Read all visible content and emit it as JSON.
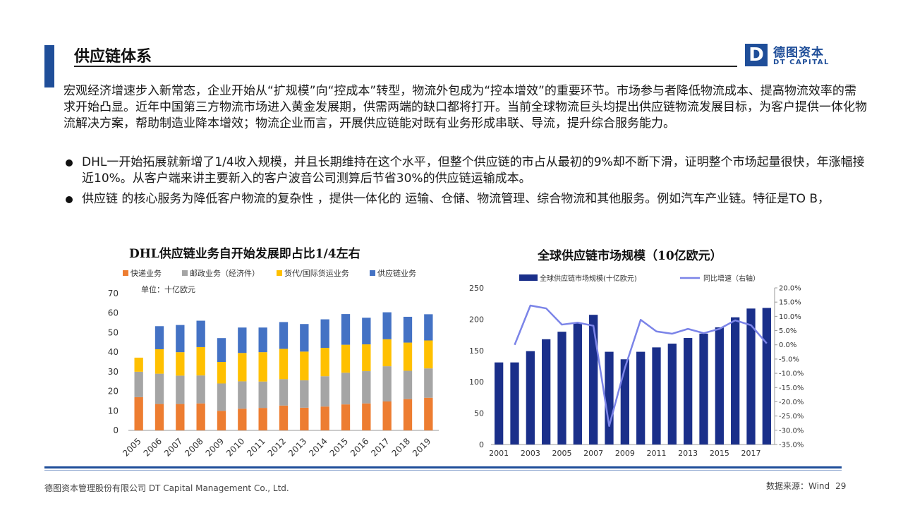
{
  "header": {
    "title": "供应链体系",
    "logo_mark": "D",
    "logo_cn": "德图资本",
    "logo_en": "DT CAPITAL"
  },
  "body": {
    "intro": "宏观经济增速步入新常态，企业开始从“扩规模”向“控成本”转型，物流外包成为“控本增效”的重要环节。市场参与者降低物流成本、提高物流效率的需求开始凸显。近年中国第三方物流市场进入黄金发展期，供需两端的缺口都将打开。当前全球物流巨头均提出供应链物流发展目标，为客户提供一体化物流解决方案，帮助制造业降本增效；物流企业而言，开展供应链能对既有业务形成串联、导流，提升综合服务能力。",
    "bullets": [
      "DHL一开始拓展就新增了1/4收入规模，并且长期维持在这个水平，但整个供应链的市占从最初的9%却不断下滑，证明整个市场起量很快，年涨幅接近10%。从客户端来讲主要新入的客户波音公司测算后节省30%的供应链运输成本。",
      "供应链 的核心服务为降低客户物流的复杂性 ，提供一体化的 运输、仓储、物流管理、综合物流和其他服务。例如汽车产业链。特征是TO B，"
    ]
  },
  "chart_data": [
    {
      "type": "bar",
      "stacked": true,
      "title": "DHL供应链业务自开始发展即占比1/4左右",
      "unit_label": "单位：十亿欧元",
      "categories": [
        "2005",
        "2006",
        "2007",
        "2008",
        "2009",
        "2010",
        "2011",
        "2012",
        "2013",
        "2014",
        "2015",
        "2016",
        "2017",
        "2018",
        "2019"
      ],
      "series": [
        {
          "name": "快递业务",
          "color": "#ed7d31",
          "values": [
            17,
            13.5,
            13.5,
            13.8,
            10,
            11.1,
            11.5,
            12.7,
            11.6,
            12.2,
            13.3,
            13.8,
            14.8,
            16,
            16.7
          ]
        },
        {
          "name": "邮政业务（经济件）",
          "color": "#a5a5a5",
          "values": [
            13,
            15.5,
            14.5,
            14.3,
            14,
            14,
            13.5,
            13.5,
            14,
            15.5,
            16.2,
            16.5,
            18,
            14.5,
            15
          ]
        },
        {
          "name": "货代/国际货运业务",
          "color": "#ffc000",
          "values": [
            7.2,
            12.5,
            12,
            14.5,
            11,
            14.5,
            15,
            15.5,
            14.7,
            14.5,
            14.3,
            13.7,
            13.8,
            14.4,
            14.3
          ]
        },
        {
          "name": "供应链业务",
          "color": "#4472c4",
          "values": [
            0,
            11.8,
            13.9,
            13.5,
            12.2,
            13,
            12.6,
            13.7,
            14.1,
            14.6,
            15.7,
            13.6,
            13.8,
            13.2,
            13.4
          ]
        }
      ],
      "ylim": [
        0,
        70
      ],
      "yticks": [
        0,
        10,
        20,
        30,
        40,
        50,
        60,
        70
      ],
      "legend": "top",
      "grid": false
    },
    {
      "type": "bar+line",
      "title": "全球供应链市场规模（10亿欧元）",
      "categories": [
        "2001",
        "2002",
        "2003",
        "2004",
        "2005",
        "2006",
        "2007",
        "2008",
        "2009",
        "2010",
        "2011",
        "2012",
        "2013",
        "2014",
        "2015",
        "2016",
        "2017",
        "2018"
      ],
      "xtick_labels": [
        "2001",
        "2003",
        "2005",
        "2007",
        "2009",
        "2011",
        "2013",
        "2015",
        "2017"
      ],
      "series": [
        {
          "name": "全球供应链市场规模(十亿欧元)",
          "type": "bar",
          "axis": "left",
          "color": "#1a2f8a",
          "values": [
            131,
            131,
            149,
            168,
            180,
            194,
            207,
            148,
            136,
            148,
            155,
            161,
            170,
            177,
            187,
            203,
            217,
            218
          ]
        },
        {
          "name": "同比增速（右轴）",
          "type": "line",
          "axis": "right",
          "color": "#7b84e8",
          "values": [
            null,
            0.0,
            13.8,
            12.8,
            7.1,
            7.8,
            6.7,
            -28.5,
            -8.1,
            8.8,
            4.7,
            3.9,
            5.6,
            4.1,
            5.6,
            8.6,
            6.9,
            0.5
          ]
        }
      ],
      "ylim_left": [
        0,
        250
      ],
      "yticks_left": [
        0,
        50,
        100,
        150,
        200,
        250
      ],
      "ylim_right": [
        -35,
        20
      ],
      "yticks_right": [
        "20.0%",
        "15.0%",
        "10.0%",
        "5.0%",
        "0.0%",
        "-5.0%",
        "-10.0%",
        "-15.0%",
        "-20.0%",
        "-25.0%",
        "-30.0%",
        "-35.0%"
      ],
      "legend": "top",
      "grid": false
    }
  ],
  "footer": {
    "company": "德图资本管理股份有限公司  DT Capital Management  Co., Ltd.",
    "source": "数据来源：Wind",
    "page": "29"
  }
}
